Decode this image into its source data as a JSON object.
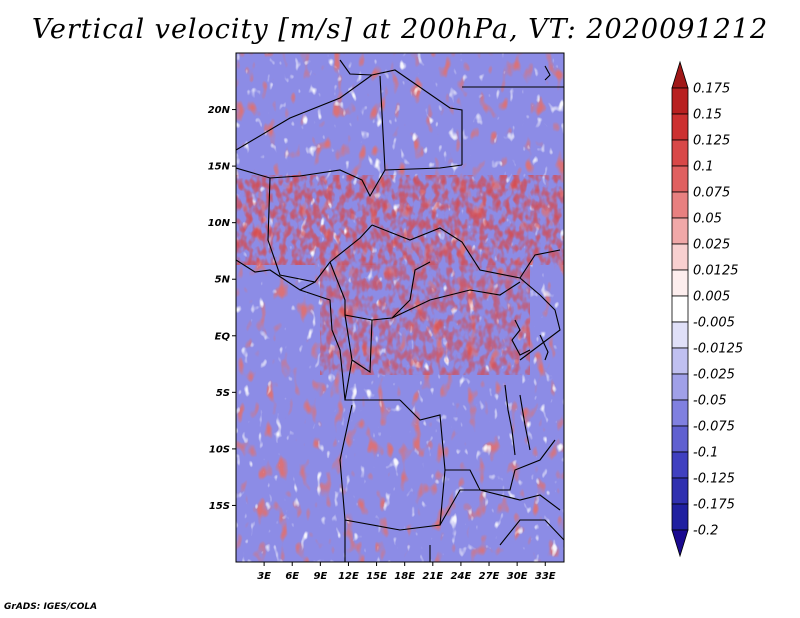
{
  "title": "Vertical velocity [m/s] at 200hPa, VT: 2020091212",
  "credit": "GrADS: IGES/COLA",
  "map": {
    "lat_labels": [
      "20N",
      "15N",
      "10N",
      "5N",
      "EQ",
      "5S",
      "10S",
      "15S"
    ],
    "lon_labels": [
      "3E",
      "6E",
      "9E",
      "12E",
      "15E",
      "18E",
      "21E",
      "24E",
      "27E",
      "30E",
      "33E"
    ],
    "lat_range": [
      -20,
      25
    ],
    "lon_range": [
      0,
      35
    ]
  },
  "colorbar": {
    "levels": [
      "0.175",
      "0.15",
      "0.125",
      "0.1",
      "0.075",
      "0.05",
      "0.025",
      "0.0125",
      "0.005",
      "-0.005",
      "-0.0125",
      "-0.025",
      "-0.05",
      "-0.075",
      "-0.1",
      "-0.125",
      "-0.175",
      "-0.2"
    ],
    "colors": [
      "#a01818",
      "#b82020",
      "#cc3030",
      "#d84848",
      "#e06060",
      "#e88080",
      "#f0a8a8",
      "#f8d0d0",
      "#fdeeee",
      "#ffffff",
      "#e0e0f8",
      "#c0c0f0",
      "#a0a0e8",
      "#8080e0",
      "#6060d0",
      "#4040c0",
      "#3030b0",
      "#2020a0",
      "#1a0a90"
    ]
  },
  "colors": {
    "positive": "#e06060",
    "negative": "#8080e0",
    "border": "#000000"
  }
}
